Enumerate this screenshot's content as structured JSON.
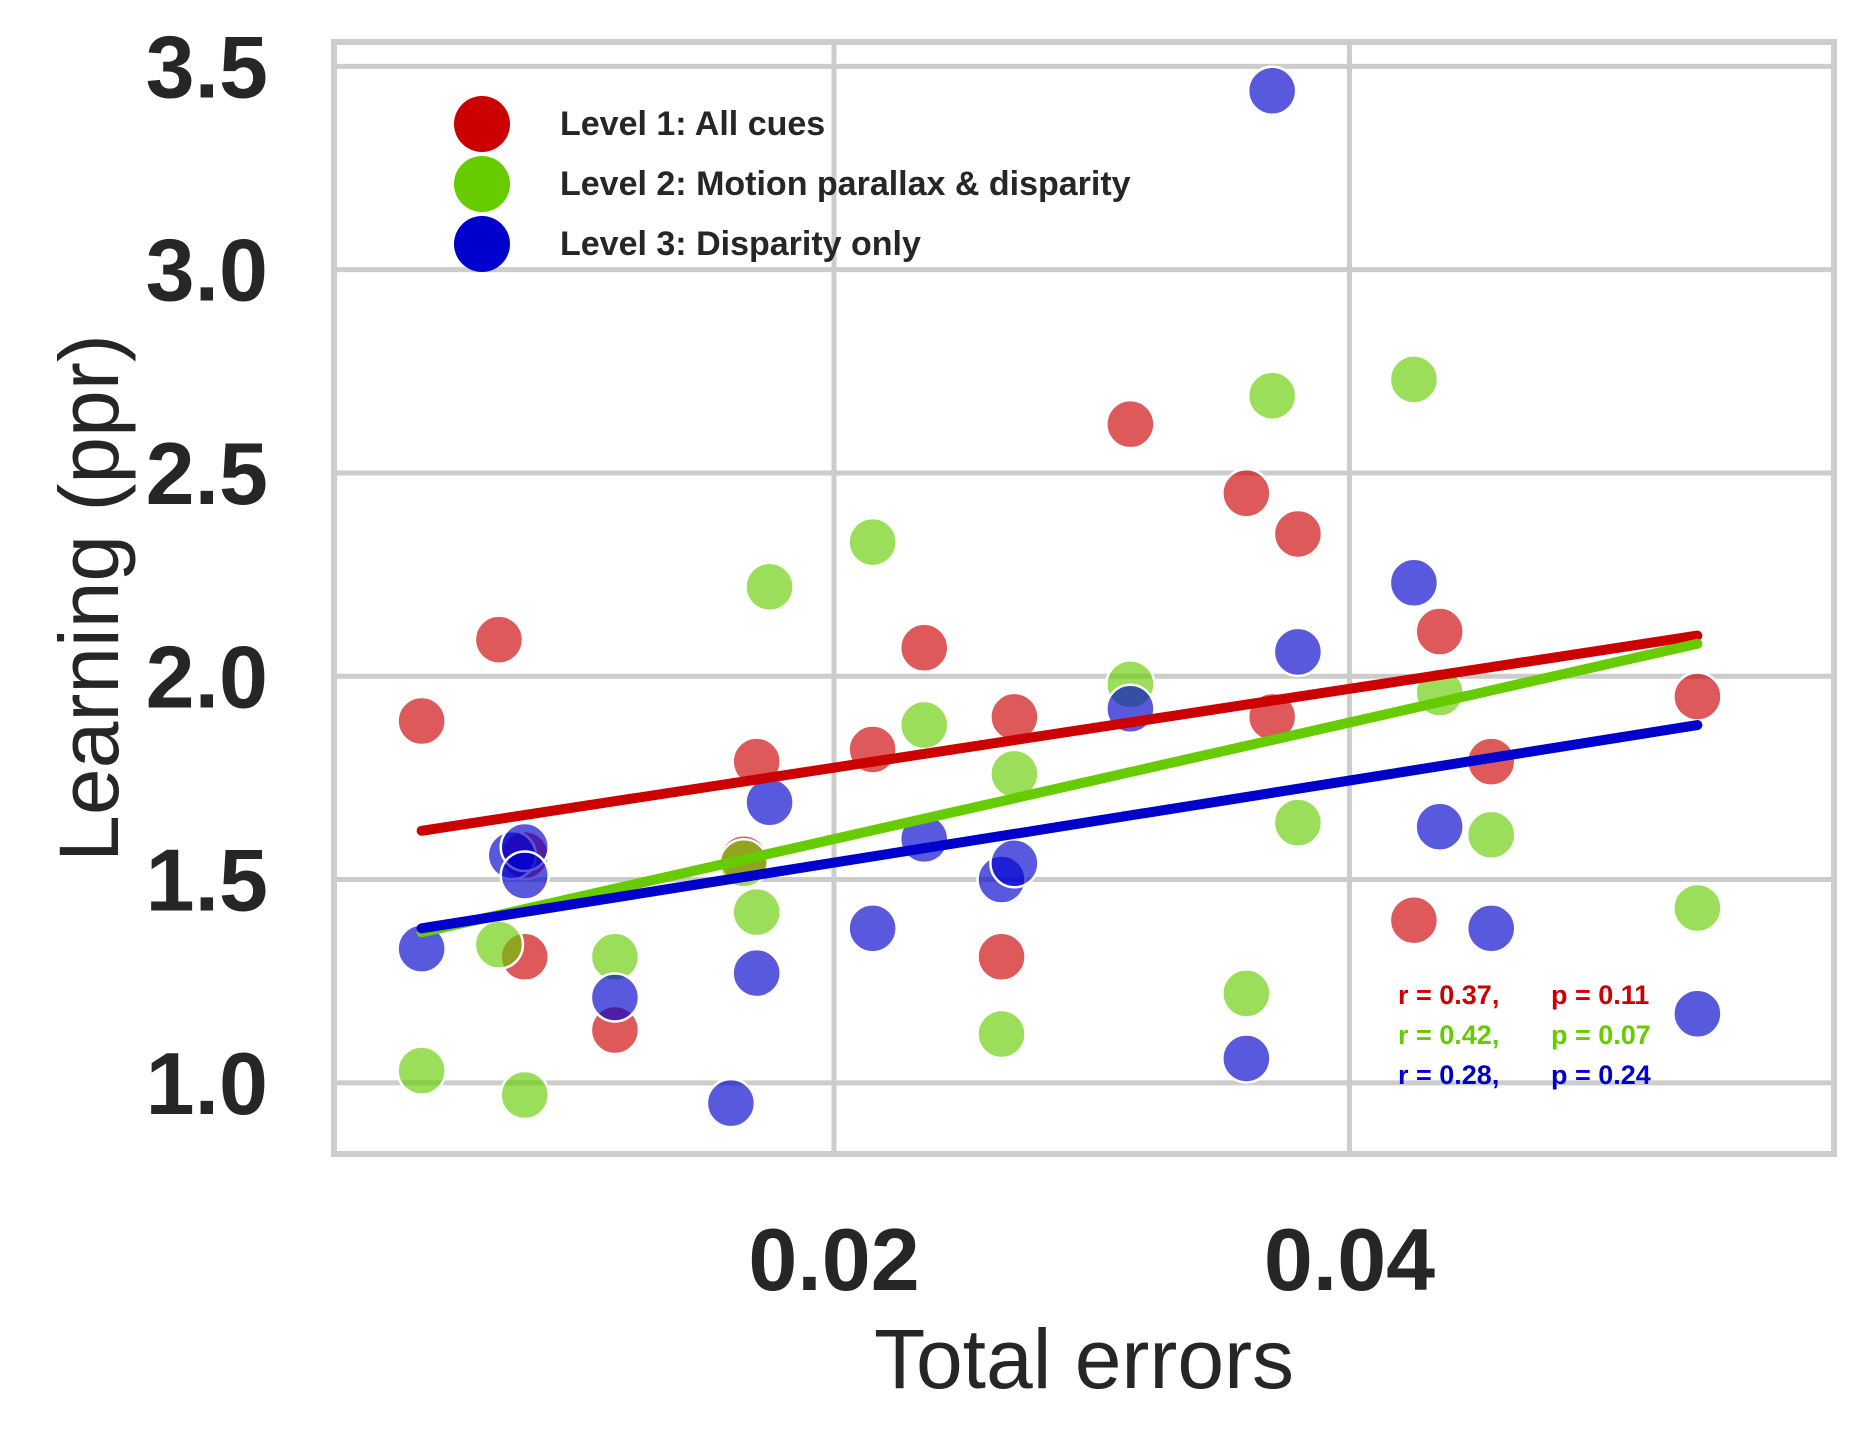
{
  "chart_data": {
    "type": "scatter",
    "xlabel": "Total errors",
    "ylabel": "Learning (ppr)",
    "xlim": [
      0.0006,
      0.0588
    ],
    "ylim": [
      0.825,
      3.56
    ],
    "x_ticks": [
      {
        "value": 0.02,
        "label": "0.02"
      },
      {
        "value": 0.04,
        "label": "0.04"
      }
    ],
    "y_ticks": [
      {
        "value": 1.0,
        "label": "1.0"
      },
      {
        "value": 1.5,
        "label": "1.5"
      },
      {
        "value": 2.0,
        "label": "2.0"
      },
      {
        "value": 2.5,
        "label": "2.5"
      },
      {
        "value": 3.0,
        "label": "3.0"
      },
      {
        "value": 3.5,
        "label": "3.5"
      }
    ],
    "grid": true,
    "legend_position": "top-left",
    "series": [
      {
        "name": "Level 1: All cues",
        "color": "#cc0000",
        "points": [
          [
            0.004,
            1.89
          ],
          [
            0.007,
            2.09
          ],
          [
            0.008,
            1.56
          ],
          [
            0.008,
            1.31
          ],
          [
            0.0115,
            1.13
          ],
          [
            0.0165,
            1.55
          ],
          [
            0.017,
            1.79
          ],
          [
            0.0215,
            1.82
          ],
          [
            0.0235,
            2.07
          ],
          [
            0.0265,
            1.31
          ],
          [
            0.027,
            1.9
          ],
          [
            0.0315,
            2.62
          ],
          [
            0.036,
            2.45
          ],
          [
            0.037,
            1.9
          ],
          [
            0.038,
            2.35
          ],
          [
            0.0425,
            1.4
          ],
          [
            0.0435,
            2.11
          ],
          [
            0.0455,
            1.79
          ],
          [
            0.0535,
            1.95
          ]
        ],
        "fit": {
          "x": [
            0.004,
            0.0535
          ],
          "y": [
            1.62,
            2.1
          ]
        },
        "stats": {
          "r": "r = 0.37,",
          "p": "p = 0.11"
        }
      },
      {
        "name": "Level 2: Motion parallax & disparity",
        "color": "#66cc00",
        "points": [
          [
            0.004,
            1.03
          ],
          [
            0.007,
            1.34
          ],
          [
            0.008,
            0.97
          ],
          [
            0.0115,
            1.31
          ],
          [
            0.0165,
            1.54
          ],
          [
            0.017,
            1.42
          ],
          [
            0.0175,
            2.22
          ],
          [
            0.0215,
            2.33
          ],
          [
            0.0235,
            1.88
          ],
          [
            0.0265,
            1.12
          ],
          [
            0.027,
            1.76
          ],
          [
            0.0315,
            1.98
          ],
          [
            0.036,
            1.22
          ],
          [
            0.037,
            2.69
          ],
          [
            0.038,
            1.64
          ],
          [
            0.0425,
            2.73
          ],
          [
            0.0435,
            1.96
          ],
          [
            0.0455,
            1.61
          ],
          [
            0.0535,
            1.43
          ]
        ],
        "fit": {
          "x": [
            0.004,
            0.0535
          ],
          "y": [
            1.37,
            2.08
          ]
        },
        "stats": {
          "r": "r = 0.42,",
          "p": "p = 0.07"
        }
      },
      {
        "name": "Level 3: Disparity only",
        "color": "#0000cc",
        "points": [
          [
            0.004,
            1.33
          ],
          [
            0.0075,
            1.56
          ],
          [
            0.008,
            1.58
          ],
          [
            0.008,
            1.51
          ],
          [
            0.0115,
            1.21
          ],
          [
            0.016,
            0.95
          ],
          [
            0.017,
            1.27
          ],
          [
            0.0175,
            1.69
          ],
          [
            0.0215,
            1.38
          ],
          [
            0.0235,
            1.6
          ],
          [
            0.0265,
            1.5
          ],
          [
            0.027,
            1.54
          ],
          [
            0.0315,
            1.92
          ],
          [
            0.036,
            1.06
          ],
          [
            0.037,
            3.44
          ],
          [
            0.038,
            2.06
          ],
          [
            0.0425,
            2.23
          ],
          [
            0.0435,
            1.63
          ],
          [
            0.0455,
            1.38
          ],
          [
            0.0535,
            1.17
          ]
        ],
        "fit": {
          "x": [
            0.004,
            0.0535
          ],
          "y": [
            1.38,
            1.88
          ]
        },
        "stats": {
          "r": "r = 0.28,",
          "p": "p = 0.24"
        }
      }
    ]
  }
}
